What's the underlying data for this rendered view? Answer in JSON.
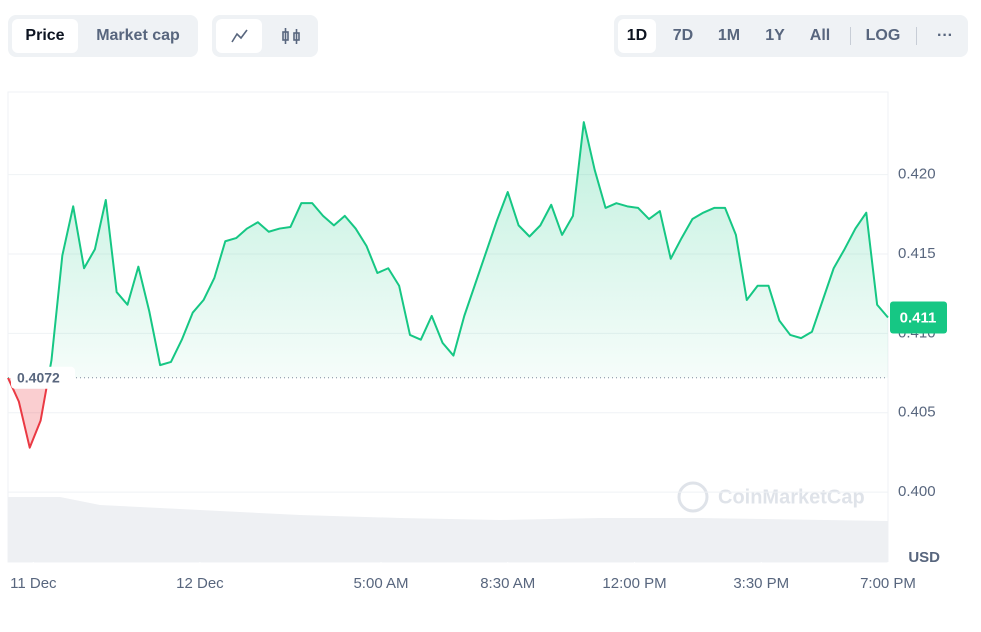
{
  "controls": {
    "metric": [
      "Price",
      "Market cap"
    ],
    "ranges": [
      "1D",
      "7D",
      "1M",
      "1Y",
      "All"
    ],
    "log": "LOG",
    "more": "···"
  },
  "chart_data": {
    "type": "line",
    "watermark": "CoinMarketCap",
    "y_unit": "USD",
    "x": [
      -5.3,
      -5.0,
      -4.7,
      -4.4,
      -4.1,
      -3.8,
      -3.5,
      -3.2,
      -2.9,
      -2.6,
      -2.3,
      -2.0,
      -1.7,
      -1.4,
      -1.1,
      -0.8,
      -0.5,
      -0.2,
      0.1,
      0.4,
      0.7,
      1.0,
      1.3,
      1.6,
      1.9,
      2.2,
      2.5,
      2.8,
      3.1,
      3.4,
      3.7,
      4.0,
      4.3,
      4.6,
      4.9,
      5.2,
      5.5,
      5.8,
      6.1,
      6.4,
      6.7,
      7.0,
      7.3,
      7.6,
      7.9,
      8.2,
      8.5,
      8.8,
      9.1,
      9.4,
      9.7,
      10.0,
      10.3,
      10.6,
      10.9,
      11.2,
      11.5,
      11.8,
      12.1,
      12.4,
      12.7,
      13.0,
      13.3,
      13.6,
      13.9,
      14.2,
      14.5,
      14.8,
      15.1,
      15.4,
      15.7,
      16.0,
      16.3,
      16.6,
      16.9,
      17.2,
      17.5,
      17.8,
      18.1,
      18.4,
      18.7,
      19.0
    ],
    "series": [
      {
        "name": "Price",
        "color": "#16c784",
        "negative_color": "#ea3943",
        "values": [
          0.4072,
          0.4057,
          0.4028,
          0.4045,
          0.4083,
          0.4149,
          0.418,
          0.4141,
          0.4153,
          0.4184,
          0.4126,
          0.4118,
          0.4142,
          0.4114,
          0.408,
          0.4082,
          0.4096,
          0.4113,
          0.4121,
          0.4135,
          0.4158,
          0.416,
          0.4166,
          0.417,
          0.4164,
          0.4166,
          0.4167,
          0.4182,
          0.4182,
          0.4174,
          0.4168,
          0.4174,
          0.4166,
          0.4155,
          0.4138,
          0.4141,
          0.413,
          0.4099,
          0.4096,
          0.4111,
          0.4094,
          0.4086,
          0.4111,
          0.4131,
          0.4151,
          0.4171,
          0.4189,
          0.4168,
          0.4161,
          0.4168,
          0.4181,
          0.4162,
          0.4174,
          0.4233,
          0.4203,
          0.4179,
          0.4182,
          0.418,
          0.4179,
          0.4172,
          0.4177,
          0.4147,
          0.416,
          0.4172,
          0.4176,
          0.4179,
          0.4179,
          0.4162,
          0.4121,
          0.413,
          0.413,
          0.4108,
          0.4099,
          0.4097,
          0.4101,
          0.4121,
          0.4141,
          0.4153,
          0.4166,
          0.4176,
          0.4118,
          0.411
        ]
      }
    ],
    "baseline": 0.4072,
    "xlim": [
      -5.3,
      19.0
    ],
    "xticks": [
      {
        "value": -4.6,
        "label": "11 Dec"
      },
      {
        "value": 0,
        "label": "12 Dec"
      },
      {
        "value": 5,
        "label": "5:00 AM"
      },
      {
        "value": 8.5,
        "label": "8:30 AM"
      },
      {
        "value": 12,
        "label": "12:00 PM"
      },
      {
        "value": 15.5,
        "label": "3:30 PM"
      },
      {
        "value": 19,
        "label": "7:00 PM"
      }
    ],
    "ylim": [
      0.3956,
      0.4252
    ],
    "yticks": [
      {
        "value": 0.4,
        "label": "0.400"
      },
      0.405,
      {
        "value": 0.41,
        "label": "0.410"
      },
      0.415,
      {
        "value": 0.42,
        "label": "0.420"
      }
    ],
    "grid": true
  }
}
